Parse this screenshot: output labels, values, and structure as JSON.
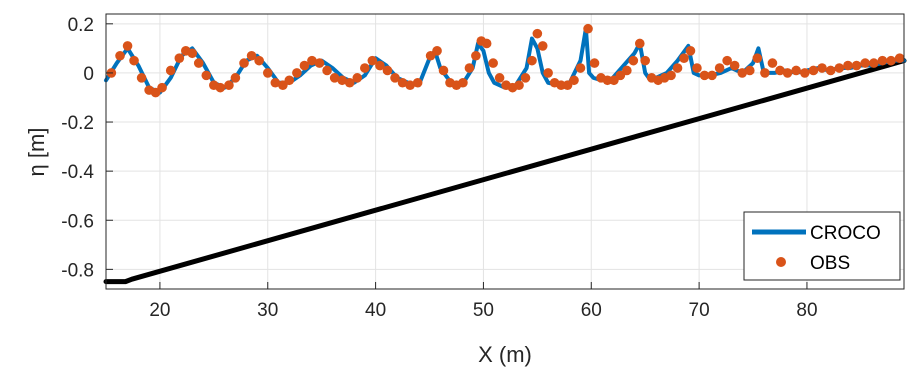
{
  "chart_data": {
    "type": "line",
    "xlabel": "X (m)",
    "ylabel": "η [m]",
    "xlim": [
      15,
      89
    ],
    "ylim": [
      -0.88,
      0.24
    ],
    "xticks": [
      20,
      30,
      40,
      50,
      60,
      70,
      80
    ],
    "yticks": [
      -0.8,
      -0.6,
      -0.4,
      -0.2,
      0,
      0.2
    ],
    "xtick_labels": [
      "20",
      "30",
      "40",
      "50",
      "60",
      "70",
      "80"
    ],
    "ytick_labels": [
      "-0.8",
      "-0.6",
      "-0.4",
      "-0.2",
      "0",
      "0.2"
    ],
    "grid": true,
    "legend_position": "bottom-right",
    "colors": {
      "croco": "#0072BD",
      "obs": "#D95319",
      "bathymetry": "#000000"
    },
    "series": [
      {
        "name": "CROCO",
        "style": "line",
        "x": [
          15,
          16,
          17,
          18,
          19,
          20,
          21,
          22,
          23,
          24,
          25,
          26,
          27,
          28,
          29,
          30,
          31,
          32,
          33,
          34,
          35,
          36,
          37,
          38,
          39,
          40,
          41,
          42,
          43,
          44,
          45,
          45.5,
          46,
          47,
          48,
          49,
          49.5,
          50,
          50.5,
          51,
          52,
          53,
          54,
          54.5,
          55,
          55.5,
          56,
          57,
          58,
          59,
          59.5,
          59.8,
          60.2,
          61,
          62,
          63,
          64,
          64.5,
          65,
          65.5,
          66,
          67,
          68,
          69,
          69.5,
          70,
          71,
          72,
          73,
          74,
          75,
          75.5,
          76,
          77,
          78,
          79,
          80,
          81,
          82,
          83,
          84,
          85,
          86,
          87,
          88,
          89
        ],
        "y": [
          -0.03,
          0.04,
          0.1,
          0.03,
          -0.06,
          -0.08,
          -0.02,
          0.07,
          0.1,
          0.04,
          -0.04,
          -0.06,
          -0.02,
          0.05,
          0.07,
          0.02,
          -0.04,
          -0.04,
          -0.01,
          0.03,
          0.05,
          0.02,
          -0.02,
          -0.04,
          -0.01,
          0.06,
          0.03,
          -0.02,
          -0.04,
          -0.05,
          0.06,
          0.09,
          0.02,
          -0.04,
          -0.05,
          0.02,
          0.12,
          0.09,
          0.0,
          -0.04,
          -0.06,
          -0.05,
          0.02,
          0.14,
          0.1,
          0.0,
          -0.04,
          -0.05,
          -0.04,
          0.05,
          0.18,
          0.0,
          -0.02,
          -0.03,
          -0.02,
          0.03,
          0.08,
          0.12,
          0.0,
          -0.03,
          -0.02,
          0.0,
          0.05,
          0.11,
          0.0,
          -0.01,
          -0.01,
          0.0,
          0.02,
          0.0,
          0.04,
          0.1,
          0.0,
          0.0,
          0.01,
          0.0,
          0.01,
          0.02,
          0.01,
          0.02,
          0.02,
          0.03,
          0.03,
          0.04,
          0.05,
          0.05
        ]
      },
      {
        "name": "OBS",
        "style": "markers",
        "x": [
          15.5,
          16.3,
          17.0,
          17.6,
          18.3,
          19.0,
          19.6,
          20.2,
          21.0,
          21.8,
          22.4,
          23.0,
          23.6,
          24.3,
          25.0,
          25.6,
          26.4,
          27.0,
          27.8,
          28.5,
          29.2,
          30.0,
          30.7,
          31.4,
          32.0,
          32.7,
          33.4,
          34.1,
          34.8,
          35.5,
          36.2,
          36.9,
          37.6,
          38.3,
          39.0,
          39.7,
          40.4,
          41.1,
          41.8,
          42.5,
          43.2,
          43.9,
          45.1,
          45.7,
          46.3,
          46.9,
          47.5,
          48.1,
          48.7,
          49.3,
          49.8,
          50.3,
          50.9,
          51.5,
          52.1,
          52.7,
          53.3,
          53.9,
          54.5,
          55.0,
          55.5,
          56.0,
          56.6,
          57.2,
          57.8,
          58.4,
          59.0,
          59.7,
          60.3,
          60.9,
          61.5,
          62.1,
          62.7,
          63.3,
          63.9,
          64.5,
          65.0,
          65.6,
          66.2,
          66.8,
          67.4,
          68.0,
          68.6,
          69.2,
          69.8,
          70.5,
          71.2,
          71.9,
          72.6,
          73.3,
          74.0,
          74.7,
          75.4,
          76.1,
          76.8,
          77.5,
          78.2,
          79.0,
          79.8,
          80.6,
          81.4,
          82.2,
          83.0,
          83.8,
          84.6,
          85.4,
          86.2,
          87.0,
          87.8,
          88.6
        ],
        "y": [
          0.0,
          0.07,
          0.11,
          0.05,
          -0.02,
          -0.07,
          -0.08,
          -0.06,
          0.01,
          0.06,
          0.09,
          0.08,
          0.04,
          -0.01,
          -0.05,
          -0.06,
          -0.05,
          -0.02,
          0.04,
          0.07,
          0.05,
          0.0,
          -0.04,
          -0.05,
          -0.03,
          0.0,
          0.03,
          0.05,
          0.04,
          0.01,
          -0.02,
          -0.03,
          -0.04,
          -0.02,
          0.02,
          0.05,
          0.03,
          0.01,
          -0.02,
          -0.04,
          -0.05,
          -0.04,
          0.07,
          0.09,
          0.01,
          -0.04,
          -0.05,
          -0.04,
          0.02,
          0.07,
          0.13,
          0.12,
          0.04,
          -0.02,
          -0.05,
          -0.06,
          -0.05,
          -0.02,
          0.05,
          0.16,
          0.11,
          0.0,
          -0.04,
          -0.05,
          -0.05,
          -0.03,
          0.02,
          0.18,
          0.04,
          -0.02,
          -0.03,
          -0.03,
          -0.01,
          0.01,
          0.05,
          0.12,
          0.05,
          -0.02,
          -0.03,
          -0.02,
          -0.01,
          0.02,
          0.06,
          0.09,
          0.02,
          -0.01,
          -0.01,
          0.02,
          0.05,
          0.03,
          0.0,
          0.01,
          0.06,
          0.0,
          0.04,
          0.01,
          0.0,
          0.01,
          0.0,
          0.01,
          0.02,
          0.01,
          0.02,
          0.03,
          0.03,
          0.04,
          0.04,
          0.05,
          0.05,
          0.06
        ]
      },
      {
        "style": "line",
        "x": [
          15,
          16.8,
          17.4,
          89
        ],
        "y": [
          -0.85,
          -0.85,
          -0.84,
          0.05
        ]
      }
    ]
  }
}
